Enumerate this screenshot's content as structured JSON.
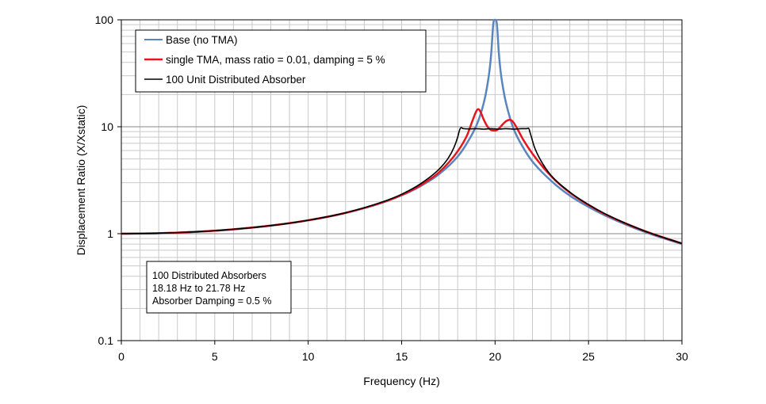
{
  "chart_data": {
    "type": "line",
    "title": "",
    "xlabel": "Frequency (Hz)",
    "ylabel": "Displacement Ratio (X/Xstatic)",
    "xlim": [
      0,
      30
    ],
    "ylim": [
      0.1,
      100
    ],
    "yscale": "log",
    "grid": true,
    "x_ticks": [
      0,
      5,
      10,
      15,
      20,
      25,
      30
    ],
    "x_tick_labels": [
      "0",
      "5",
      "10",
      "15",
      "20",
      "25",
      "30"
    ],
    "y_ticks": [
      0.1,
      1,
      10,
      100
    ],
    "y_tick_labels": [
      "0.1",
      "1",
      "10",
      "100"
    ],
    "legend": {
      "placement": "top-left",
      "entries": [
        "Base (no TMA)",
        "single TMA, mass ratio = 0.01, damping = 5 %",
        "100 Unit Distributed Absorber"
      ]
    },
    "annotation": {
      "placement": "lower-left",
      "lines": [
        "100 Distributed Absorbers",
        "18.18 Hz to 21.78 Hz",
        "Absorber Damping = 0.5 %"
      ]
    },
    "series": [
      {
        "name": "Base (no TMA)",
        "color": "#5b85bf",
        "x": [
          0,
          2,
          4,
          6,
          8,
          10,
          12,
          14,
          15,
          16,
          17,
          18,
          18.5,
          19,
          19.3,
          19.5,
          19.7,
          19.8,
          19.9,
          19.95,
          20,
          20.05,
          20.1,
          20.2,
          20.3,
          20.5,
          20.7,
          21,
          21.5,
          22,
          23,
          24,
          25,
          26,
          28,
          30
        ],
        "y": [
          1,
          1.01,
          1.042,
          1.099,
          1.19,
          1.333,
          1.563,
          1.961,
          2.286,
          2.778,
          3.6,
          5.263,
          7.042,
          10.26,
          14.5,
          20.2,
          33.4,
          49.9,
          90,
          99.5,
          100,
          99.5,
          90,
          49.5,
          32.5,
          19.6,
          13.9,
          9.5,
          6.4,
          4.73,
          3.12,
          2.27,
          1.78,
          1.45,
          1.04,
          0.8
        ]
      },
      {
        "name": "single TMA, mass ratio = 0.01, damping = 5 %",
        "color": "#e8141c",
        "x": [
          0,
          2,
          4,
          6,
          8,
          10,
          12,
          14,
          15,
          16,
          17,
          18,
          18.5,
          18.8,
          19,
          19.1,
          19.2,
          19.4,
          19.6,
          19.8,
          20,
          20.2,
          20.4,
          20.6,
          20.8,
          20.9,
          21,
          21.2,
          21.5,
          22,
          23,
          24,
          25,
          26,
          28,
          30
        ],
        "y": [
          1,
          1.01,
          1.042,
          1.099,
          1.19,
          1.335,
          1.565,
          1.97,
          2.3,
          2.83,
          3.75,
          5.9,
          8.3,
          11.5,
          14.0,
          14.6,
          14.0,
          11.6,
          10.0,
          9.3,
          9.2,
          9.6,
          10.5,
          11.3,
          11.6,
          11.4,
          10.9,
          9.5,
          7.6,
          5.6,
          3.45,
          2.42,
          1.86,
          1.49,
          1.06,
          0.81
        ]
      },
      {
        "name": "100 Unit Distributed Absorber",
        "color": "#000000",
        "x": [
          0,
          2,
          4,
          6,
          8,
          10,
          12,
          14,
          15,
          16,
          17,
          17.5,
          17.8,
          18.0,
          18.1,
          18.18,
          18.3,
          18.6,
          19,
          19.4,
          19.8,
          20.2,
          20.6,
          21,
          21.4,
          21.7,
          21.78,
          21.9,
          22.1,
          22.4,
          23,
          24,
          25,
          26,
          28,
          30
        ],
        "y": [
          1,
          1.01,
          1.042,
          1.099,
          1.19,
          1.336,
          1.57,
          1.99,
          2.34,
          2.92,
          4.0,
          5.1,
          6.4,
          8.0,
          9.3,
          9.8,
          9.6,
          9.55,
          9.6,
          9.5,
          9.6,
          9.5,
          9.6,
          9.5,
          9.6,
          9.6,
          9.7,
          8.5,
          6.5,
          5.0,
          3.5,
          2.45,
          1.87,
          1.5,
          1.06,
          0.81
        ]
      }
    ]
  }
}
